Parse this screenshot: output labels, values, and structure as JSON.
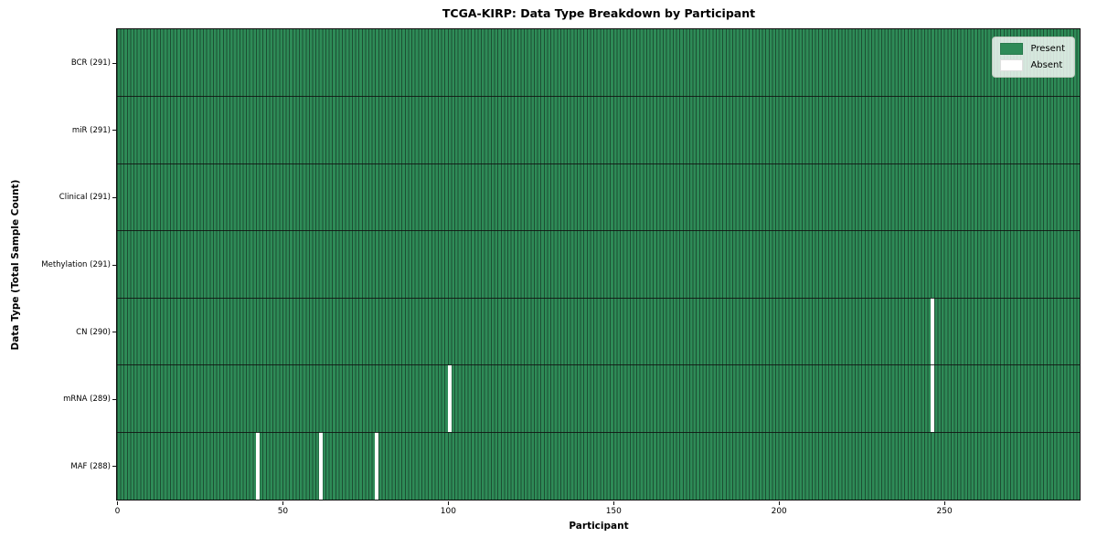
{
  "chart_data": {
    "type": "heatmap",
    "title": "TCGA-KIRP: Data Type Breakdown by Participant",
    "xlabel": "Participant",
    "ylabel": "Data Type (Total Sample Count)",
    "x_ticks": [
      0,
      50,
      100,
      150,
      200,
      250
    ],
    "x_range": [
      0,
      291
    ],
    "n_participants": 291,
    "grid": "cell-edges",
    "legend": {
      "position": "upper-right",
      "entries": [
        {
          "label": "Present",
          "color": "#2e8b57"
        },
        {
          "label": "Absent",
          "color": "#ffffff"
        }
      ]
    },
    "rows": [
      {
        "label": "BCR (291)",
        "data_type": "BCR",
        "present_count": 291,
        "absent_participants": []
      },
      {
        "label": "miR (291)",
        "data_type": "miR",
        "present_count": 291,
        "absent_participants": []
      },
      {
        "label": "Clinical (291)",
        "data_type": "Clinical",
        "present_count": 291,
        "absent_participants": []
      },
      {
        "label": "Methylation (291)",
        "data_type": "Methylation",
        "present_count": 291,
        "absent_participants": []
      },
      {
        "label": "CN (290)",
        "data_type": "CN",
        "present_count": 290,
        "absent_participants": [
          246
        ]
      },
      {
        "label": "mRNA (289)",
        "data_type": "mRNA",
        "present_count": 289,
        "absent_participants": [
          100,
          246
        ]
      },
      {
        "label": "MAF (288)",
        "data_type": "MAF",
        "present_count": 288,
        "absent_participants": [
          42,
          61,
          78
        ]
      }
    ],
    "colors": {
      "present": "#2e8b57",
      "absent": "#ffffff",
      "cell_edge": "#1c4f33",
      "separator": "#111111",
      "background": "#ffffff"
    }
  }
}
